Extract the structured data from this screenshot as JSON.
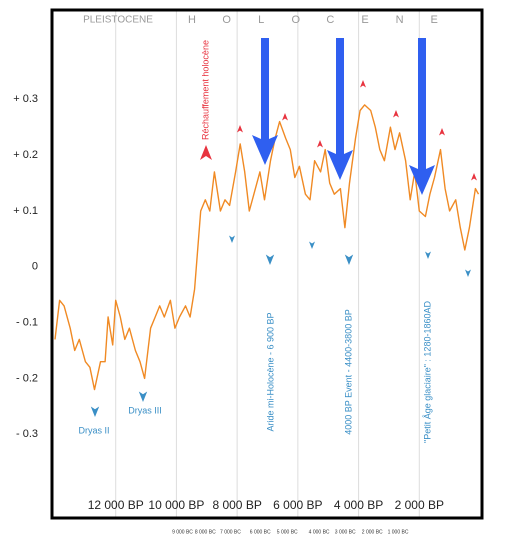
{
  "chart_data": {
    "type": "line",
    "era_label": "PLEISTOCENE",
    "holocene_letters": [
      "H",
      "O",
      "L",
      "O",
      "C",
      "E",
      "N",
      "E"
    ],
    "annotations": {
      "warming": "Réchauffement holocène",
      "dryas2": "Dryas II",
      "dryas3": "Dryas III",
      "arid": "Aride mi-Holocène - 6 900 BP",
      "event4000": "4000 BP Event - 4400-3800 BP",
      "lia": "\"Petit Âge glaciaire\" : 1280-1860AD"
    },
    "x": [
      14000,
      13850,
      13700,
      13500,
      13350,
      13200,
      13000,
      12850,
      12700,
      12500,
      12350,
      12250,
      12100,
      12000,
      11850,
      11700,
      11550,
      11350,
      11200,
      11050,
      10850,
      10700,
      10550,
      10400,
      10200,
      10050,
      9900,
      9700,
      9550,
      9400,
      9200,
      9050,
      8900,
      8750,
      8550,
      8400,
      8250,
      8050,
      7900,
      7750,
      7600,
      7400,
      7250,
      7100,
      6900,
      6750,
      6600,
      6400,
      6250,
      6100,
      5950,
      5750,
      5600,
      5450,
      5250,
      5100,
      4950,
      4800,
      4600,
      4450,
      4300,
      4100,
      3950,
      3800,
      3600,
      3450,
      3300,
      3150,
      2950,
      2800,
      2650,
      2450,
      2300,
      2150,
      2000,
      1800,
      1650,
      1500,
      1300,
      1150,
      1000,
      800,
      650,
      500,
      350,
      150,
      50
    ],
    "series": [
      {
        "color": "#f08a24",
        "values": [
          -0.13,
          -0.06,
          -0.07,
          -0.11,
          -0.15,
          -0.13,
          -0.17,
          -0.18,
          -0.22,
          -0.17,
          -0.17,
          -0.09,
          -0.14,
          -0.06,
          -0.09,
          -0.13,
          -0.11,
          -0.15,
          -0.17,
          -0.2,
          -0.11,
          -0.09,
          -0.07,
          -0.09,
          -0.06,
          -0.11,
          -0.09,
          -0.07,
          -0.09,
          -0.04,
          0.1,
          0.12,
          0.1,
          0.17,
          0.1,
          0.12,
          0.11,
          0.17,
          0.22,
          0.17,
          0.1,
          0.14,
          0.17,
          0.12,
          0.19,
          0.23,
          0.26,
          0.23,
          0.21,
          0.16,
          0.18,
          0.13,
          0.12,
          0.19,
          0.17,
          0.21,
          0.15,
          0.13,
          0.14,
          0.07,
          0.15,
          0.23,
          0.28,
          0.29,
          0.28,
          0.25,
          0.21,
          0.19,
          0.25,
          0.21,
          0.24,
          0.19,
          0.12,
          0.17,
          0.1,
          0.09,
          0.13,
          0.16,
          0.21,
          0.14,
          0.1,
          0.12,
          0.07,
          0.03,
          0.07,
          0.14,
          0.13
        ]
      }
    ],
    "xlim": [
      14000,
      0
    ],
    "ylim": [
      -0.45,
      0.46
    ],
    "xticks": [
      {
        "value": 12000,
        "label": "12 000 BP"
      },
      {
        "value": 10000,
        "label": "10 000 BP"
      },
      {
        "value": 8000,
        "label": "8 000 BP"
      },
      {
        "value": 6000,
        "label": "6 000 BP"
      },
      {
        "value": 4000,
        "label": "4 000 BP"
      },
      {
        "value": 2000,
        "label": "2 000 BP"
      }
    ],
    "x2ticks": [
      {
        "value": 9800,
        "label": "9 000 BC"
      },
      {
        "value": 9050,
        "label": "8 000 BC"
      },
      {
        "value": 8220,
        "label": "7 000 BC"
      },
      {
        "value": 7240,
        "label": "6 000 BC"
      },
      {
        "value": 6350,
        "label": "5 000 BC"
      },
      {
        "value": 5300,
        "label": "4 000 BC"
      },
      {
        "value": 4440,
        "label": "3 000 BC"
      },
      {
        "value": 3550,
        "label": "2 000 BC"
      },
      {
        "value": 2700,
        "label": "1 000 BC"
      }
    ],
    "yticks": [
      {
        "value": 0.3,
        "label": "+ 0.3"
      },
      {
        "value": 0.2,
        "label": "+ 0.2"
      },
      {
        "value": 0.1,
        "label": "+ 0.1"
      },
      0,
      {
        "value": -0.1,
        "label": "- 0.1"
      },
      {
        "value": -0.2,
        "label": "- 0.2"
      },
      {
        "value": -0.3,
        "label": "- 0.3"
      }
    ],
    "grid": true
  }
}
